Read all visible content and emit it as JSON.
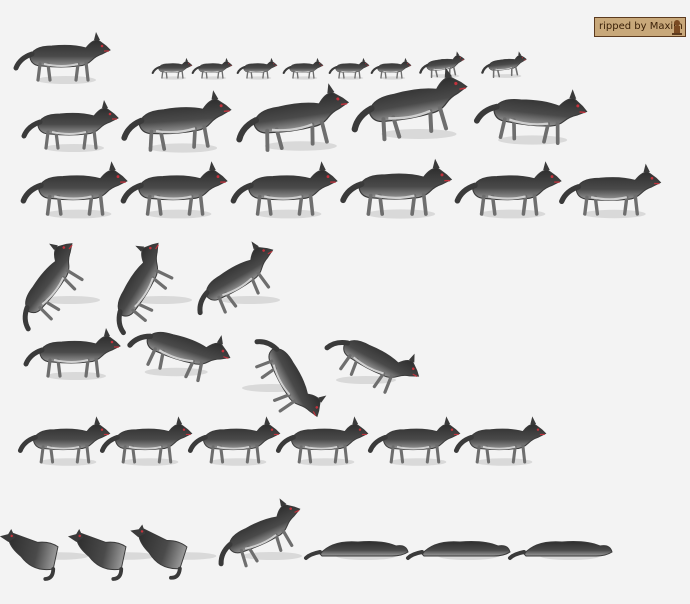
{
  "credit": {
    "text": "ripped by Maxim"
  },
  "colors": {
    "background": "#f3f3f3",
    "fur_dark": "#3a3a3a",
    "fur_mid": "#6e6e6e",
    "fur_light": "#cfcfcf",
    "eye_red": "#c2323c",
    "shadow": "#cdcdcd",
    "badge_bg": "#c8a87a",
    "badge_border": "#5b3a1e"
  },
  "sprite_sheet": {
    "subject": "wolf",
    "rows": [
      {
        "name": "portrait-and-mini-run",
        "frames": [
          "stand",
          "mini",
          "mini",
          "mini",
          "mini",
          "mini",
          "mini",
          "mini-run",
          "mini-run"
        ]
      },
      {
        "name": "run",
        "frames": [
          "trot",
          "lunge",
          "leap",
          "leap",
          "land"
        ]
      },
      {
        "name": "walk",
        "frames": [
          "walk",
          "walk",
          "walk",
          "walk",
          "walk",
          "walk"
        ]
      },
      {
        "name": "howl",
        "frames": [
          "rear",
          "rear",
          "howl"
        ]
      },
      {
        "name": "sniff-and-tumble",
        "frames": [
          "walk",
          "sniff",
          "tumble",
          "tumble"
        ]
      },
      {
        "name": "idle",
        "frames": [
          "stand",
          "stand",
          "stand",
          "stand",
          "stand",
          "stand"
        ]
      },
      {
        "name": "sit-and-lie",
        "frames": [
          "sit",
          "sit",
          "sit",
          "lie-howl",
          "lie",
          "lie-flat",
          "lie-flat"
        ]
      }
    ]
  }
}
